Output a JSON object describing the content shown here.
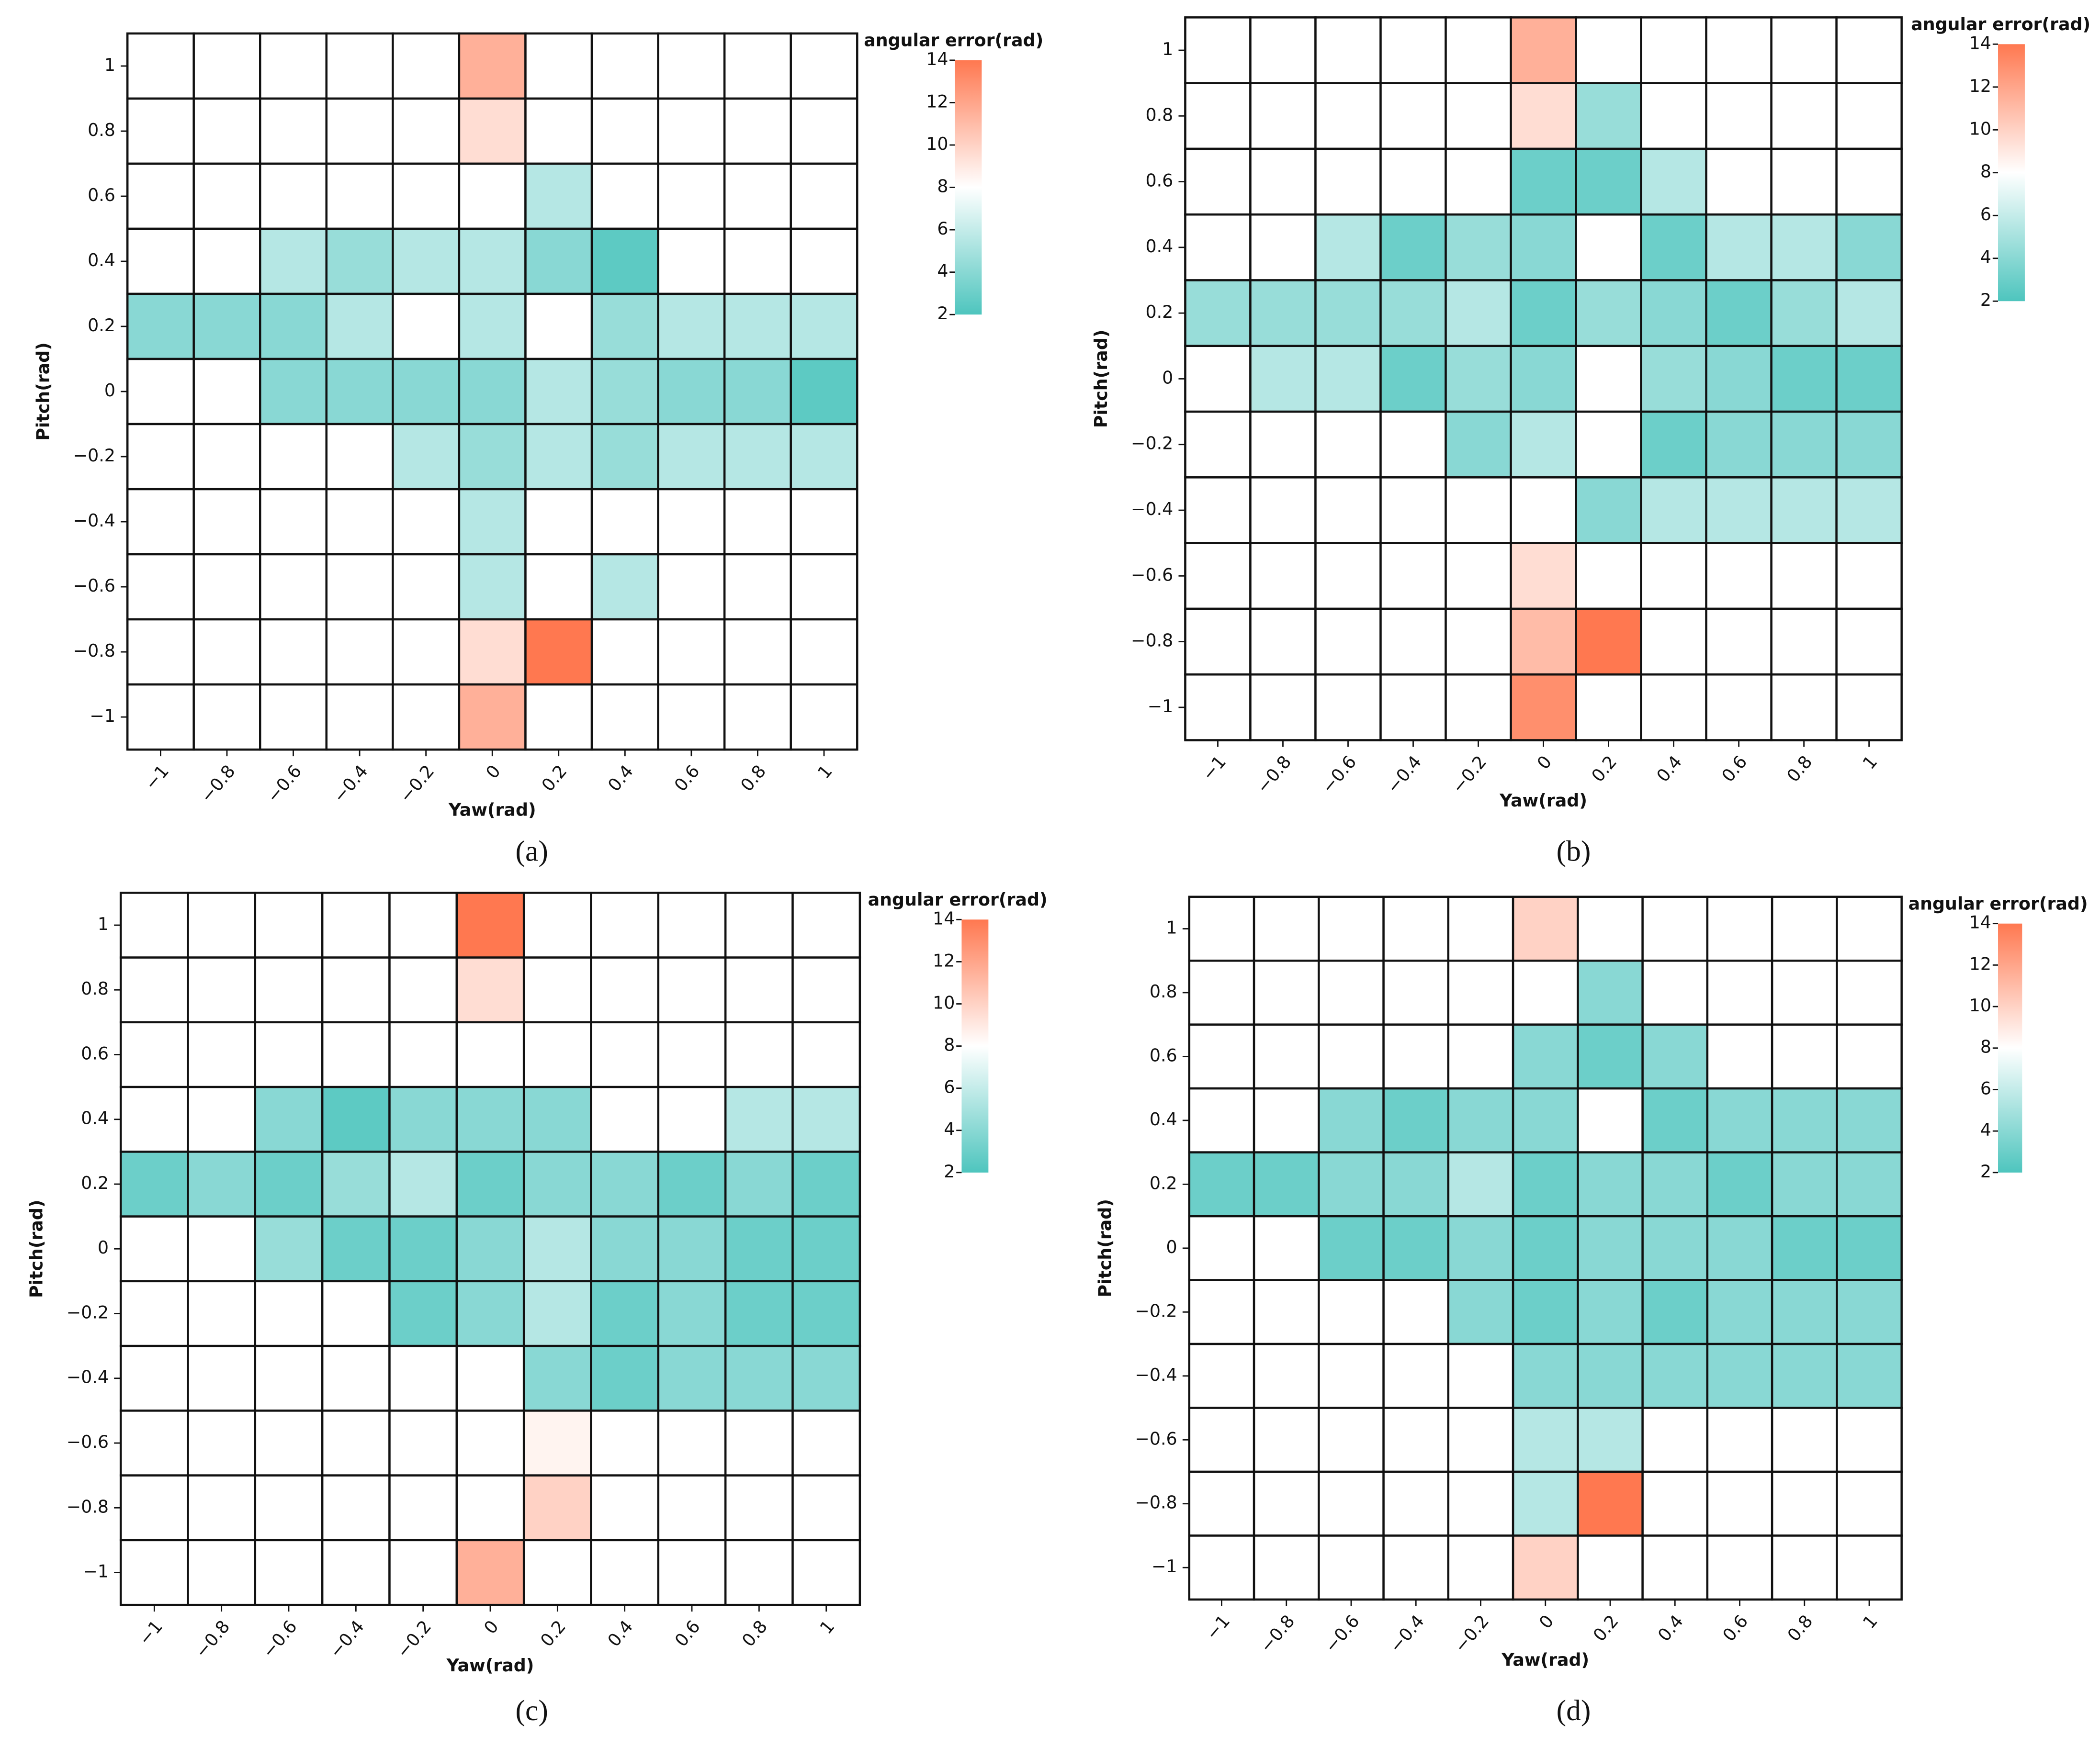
{
  "chart_data": [
    {
      "type": "heatmap",
      "panel_label": "(a)",
      "x_label": "Yaw(rad)",
      "y_label": "Pitch(rad)",
      "xticks": [
        {
          "value": -1,
          "label": "−1"
        },
        {
          "value": -0.8,
          "label": "−0.8"
        },
        {
          "value": -0.6,
          "label": "−0.6"
        },
        {
          "value": -0.4,
          "label": "−0.4"
        },
        {
          "value": -0.2,
          "label": "−0.2"
        },
        0,
        0.2,
        0.4,
        0.6,
        0.8,
        1
      ],
      "yticks": [
        1,
        0.8,
        0.6,
        0.4,
        0.2,
        0,
        {
          "value": -0.2,
          "label": "−0.2"
        },
        {
          "value": -0.4,
          "label": "−0.4"
        },
        {
          "value": -0.6,
          "label": "−0.6"
        },
        {
          "value": -0.8,
          "label": "−0.8"
        },
        {
          "value": -1,
          "label": "−1"
        }
      ],
      "z": [
        [
          null,
          null,
          null,
          null,
          null,
          11.5,
          null,
          null,
          null,
          null,
          null
        ],
        [
          null,
          null,
          null,
          null,
          null,
          9.5,
          8,
          null,
          null,
          null,
          null
        ],
        [
          null,
          null,
          null,
          null,
          null,
          8,
          5.5,
          8,
          null,
          null,
          null
        ],
        [
          null,
          null,
          5.5,
          4.5,
          5.5,
          5.5,
          4,
          2.5,
          8,
          8,
          8
        ],
        [
          4,
          4,
          4,
          5.5,
          8,
          5.5,
          8,
          4.5,
          5.5,
          5.5,
          5.5
        ],
        [
          null,
          null,
          4,
          4,
          4,
          4,
          5.5,
          4.5,
          4,
          4,
          2.5
        ],
        [
          null,
          null,
          null,
          null,
          5.5,
          4.5,
          5.5,
          4.5,
          5.5,
          5.5,
          5.5
        ],
        [
          null,
          null,
          null,
          null,
          null,
          5.5,
          8,
          8,
          8,
          8,
          8
        ],
        [
          null,
          null,
          null,
          null,
          null,
          5.5,
          8,
          5.5,
          null,
          null,
          null
        ],
        [
          null,
          null,
          null,
          null,
          null,
          9.5,
          14,
          null,
          null,
          null,
          null
        ],
        [
          null,
          null,
          null,
          null,
          null,
          11.5,
          null,
          null,
          null,
          null,
          null
        ]
      ],
      "colorbar": {
        "title": "angular error(rad)",
        "range": [
          2,
          14
        ],
        "ticks": [
          2,
          4,
          6,
          8,
          10,
          12,
          14
        ],
        "colors": [
          "#4ec5be",
          "#ffffff",
          "#ff7850"
        ]
      }
    },
    {
      "type": "heatmap",
      "panel_label": "(b)",
      "x_label": "Yaw(rad)",
      "y_label": "Pitch(rad)",
      "xticks": [
        {
          "value": -1,
          "label": "−1"
        },
        {
          "value": -0.8,
          "label": "−0.8"
        },
        {
          "value": -0.6,
          "label": "−0.6"
        },
        {
          "value": -0.4,
          "label": "−0.4"
        },
        {
          "value": -0.2,
          "label": "−0.2"
        },
        0,
        0.2,
        0.4,
        0.6,
        0.8,
        1
      ],
      "yticks": [
        1,
        0.8,
        0.6,
        0.4,
        0.2,
        0,
        {
          "value": -0.2,
          "label": "−0.2"
        },
        {
          "value": -0.4,
          "label": "−0.4"
        },
        {
          "value": -0.6,
          "label": "−0.6"
        },
        {
          "value": -0.8,
          "label": "−0.8"
        },
        {
          "value": -1,
          "label": "−1"
        }
      ],
      "z": [
        [
          null,
          null,
          null,
          null,
          null,
          11.5,
          null,
          null,
          null,
          null,
          null
        ],
        [
          null,
          null,
          null,
          null,
          null,
          9.5,
          4.5,
          null,
          null,
          null,
          null
        ],
        [
          null,
          null,
          null,
          null,
          null,
          3,
          3,
          5.5,
          null,
          null,
          null
        ],
        [
          null,
          null,
          5.5,
          3,
          4.5,
          4,
          8,
          3,
          5.5,
          5.5,
          4
        ],
        [
          4.5,
          4.5,
          4.5,
          4.5,
          5.5,
          3,
          4.5,
          4,
          3,
          4.5,
          5.5
        ],
        [
          null,
          5.5,
          5.5,
          3,
          4.5,
          4,
          8,
          4.5,
          4,
          3,
          3
        ],
        [
          null,
          null,
          null,
          null,
          4,
          5.5,
          8,
          3,
          4,
          4,
          4
        ],
        [
          null,
          null,
          null,
          null,
          null,
          8,
          4,
          5.5,
          5.5,
          5.5,
          5.5
        ],
        [
          null,
          null,
          null,
          null,
          null,
          9.5,
          8,
          null,
          null,
          null,
          null
        ],
        [
          null,
          null,
          null,
          null,
          null,
          11,
          14,
          null,
          null,
          null,
          null
        ],
        [
          null,
          null,
          null,
          null,
          null,
          13,
          null,
          null,
          null,
          null,
          null
        ]
      ],
      "colorbar": {
        "title": "angular error(rad)",
        "range": [
          2,
          14
        ],
        "ticks": [
          2,
          4,
          6,
          8,
          10,
          12,
          14
        ],
        "colors": [
          "#4ec5be",
          "#ffffff",
          "#ff7850"
        ]
      }
    },
    {
      "type": "heatmap",
      "panel_label": "(c)",
      "x_label": "Yaw(rad)",
      "y_label": "Pitch(rad)",
      "xticks": [
        {
          "value": -1,
          "label": "−1"
        },
        {
          "value": -0.8,
          "label": "−0.8"
        },
        {
          "value": -0.6,
          "label": "−0.6"
        },
        {
          "value": -0.4,
          "label": "−0.4"
        },
        {
          "value": -0.2,
          "label": "−0.2"
        },
        0,
        0.2,
        0.4,
        0.6,
        0.8,
        1
      ],
      "yticks": [
        1,
        0.8,
        0.6,
        0.4,
        0.2,
        0,
        {
          "value": -0.2,
          "label": "−0.2"
        },
        {
          "value": -0.4,
          "label": "−0.4"
        },
        {
          "value": -0.6,
          "label": "−0.6"
        },
        {
          "value": -0.8,
          "label": "−0.8"
        },
        {
          "value": -1,
          "label": "−1"
        }
      ],
      "z": [
        [
          null,
          null,
          null,
          null,
          null,
          14,
          null,
          null,
          null,
          null,
          null
        ],
        [
          null,
          null,
          null,
          null,
          null,
          9.5,
          8,
          null,
          null,
          null,
          null
        ],
        [
          null,
          null,
          null,
          null,
          null,
          8,
          8,
          8,
          null,
          null,
          null
        ],
        [
          null,
          null,
          4,
          2.5,
          4,
          4,
          4,
          8,
          8,
          5.5,
          5.5
        ],
        [
          3,
          4,
          3,
          4.5,
          5.5,
          3,
          4,
          4,
          3,
          4,
          3
        ],
        [
          null,
          null,
          4.5,
          3,
          3,
          4,
          5.5,
          4,
          4,
          3,
          3
        ],
        [
          null,
          null,
          null,
          null,
          3,
          4,
          5.5,
          3,
          4,
          3,
          3
        ],
        [
          null,
          null,
          null,
          null,
          null,
          8,
          4,
          3,
          4,
          4,
          4
        ],
        [
          null,
          null,
          null,
          null,
          null,
          8,
          8.5,
          null,
          null,
          null,
          null
        ],
        [
          null,
          null,
          null,
          null,
          null,
          8,
          10,
          null,
          null,
          null,
          null
        ],
        [
          null,
          null,
          null,
          null,
          null,
          11.5,
          null,
          null,
          null,
          null,
          null
        ]
      ],
      "colorbar": {
        "title": "angular error(rad)",
        "range": [
          2,
          14
        ],
        "ticks": [
          2,
          4,
          6,
          8,
          10,
          12,
          14
        ],
        "colors": [
          "#4ec5be",
          "#ffffff",
          "#ff7850"
        ]
      }
    },
    {
      "type": "heatmap",
      "panel_label": "(d)",
      "x_label": "Yaw(rad)",
      "y_label": "Pitch(rad)",
      "xticks": [
        {
          "value": -1,
          "label": "−1"
        },
        {
          "value": -0.8,
          "label": "−0.8"
        },
        {
          "value": -0.6,
          "label": "−0.6"
        },
        {
          "value": -0.4,
          "label": "−0.4"
        },
        {
          "value": -0.2,
          "label": "−0.2"
        },
        0,
        0.2,
        0.4,
        0.6,
        0.8,
        1
      ],
      "yticks": [
        1,
        0.8,
        0.6,
        0.4,
        0.2,
        0,
        {
          "value": -0.2,
          "label": "−0.2"
        },
        {
          "value": -0.4,
          "label": "−0.4"
        },
        {
          "value": -0.6,
          "label": "−0.6"
        },
        {
          "value": -0.8,
          "label": "−0.8"
        },
        {
          "value": -1,
          "label": "−1"
        }
      ],
      "z": [
        [
          null,
          null,
          null,
          null,
          null,
          10,
          null,
          null,
          null,
          null,
          null
        ],
        [
          null,
          null,
          null,
          null,
          null,
          8,
          4,
          null,
          null,
          null,
          null
        ],
        [
          null,
          null,
          null,
          null,
          null,
          4,
          3,
          4,
          null,
          null,
          null
        ],
        [
          null,
          null,
          4,
          3,
          4,
          4,
          8,
          3,
          4,
          4,
          4
        ],
        [
          3,
          3,
          4,
          4,
          5.5,
          3,
          4,
          4,
          3,
          4,
          4
        ],
        [
          null,
          null,
          3,
          3,
          4,
          3,
          4,
          4,
          4,
          3,
          3
        ],
        [
          null,
          null,
          null,
          null,
          4,
          3,
          4,
          3,
          4,
          4,
          4
        ],
        [
          null,
          null,
          null,
          null,
          null,
          4,
          4,
          4,
          4,
          4,
          4
        ],
        [
          null,
          null,
          null,
          null,
          null,
          5.5,
          5.5,
          null,
          null,
          null,
          null
        ],
        [
          null,
          null,
          null,
          null,
          null,
          5.5,
          14,
          null,
          null,
          null,
          null
        ],
        [
          null,
          null,
          null,
          null,
          null,
          10,
          null,
          null,
          null,
          null,
          null
        ]
      ],
      "colorbar": {
        "title": "angular error(rad)",
        "range": [
          2,
          14
        ],
        "ticks": [
          2,
          4,
          6,
          8,
          10,
          12,
          14
        ],
        "colors": [
          "#4ec5be",
          "#ffffff",
          "#ff7850"
        ]
      }
    }
  ]
}
